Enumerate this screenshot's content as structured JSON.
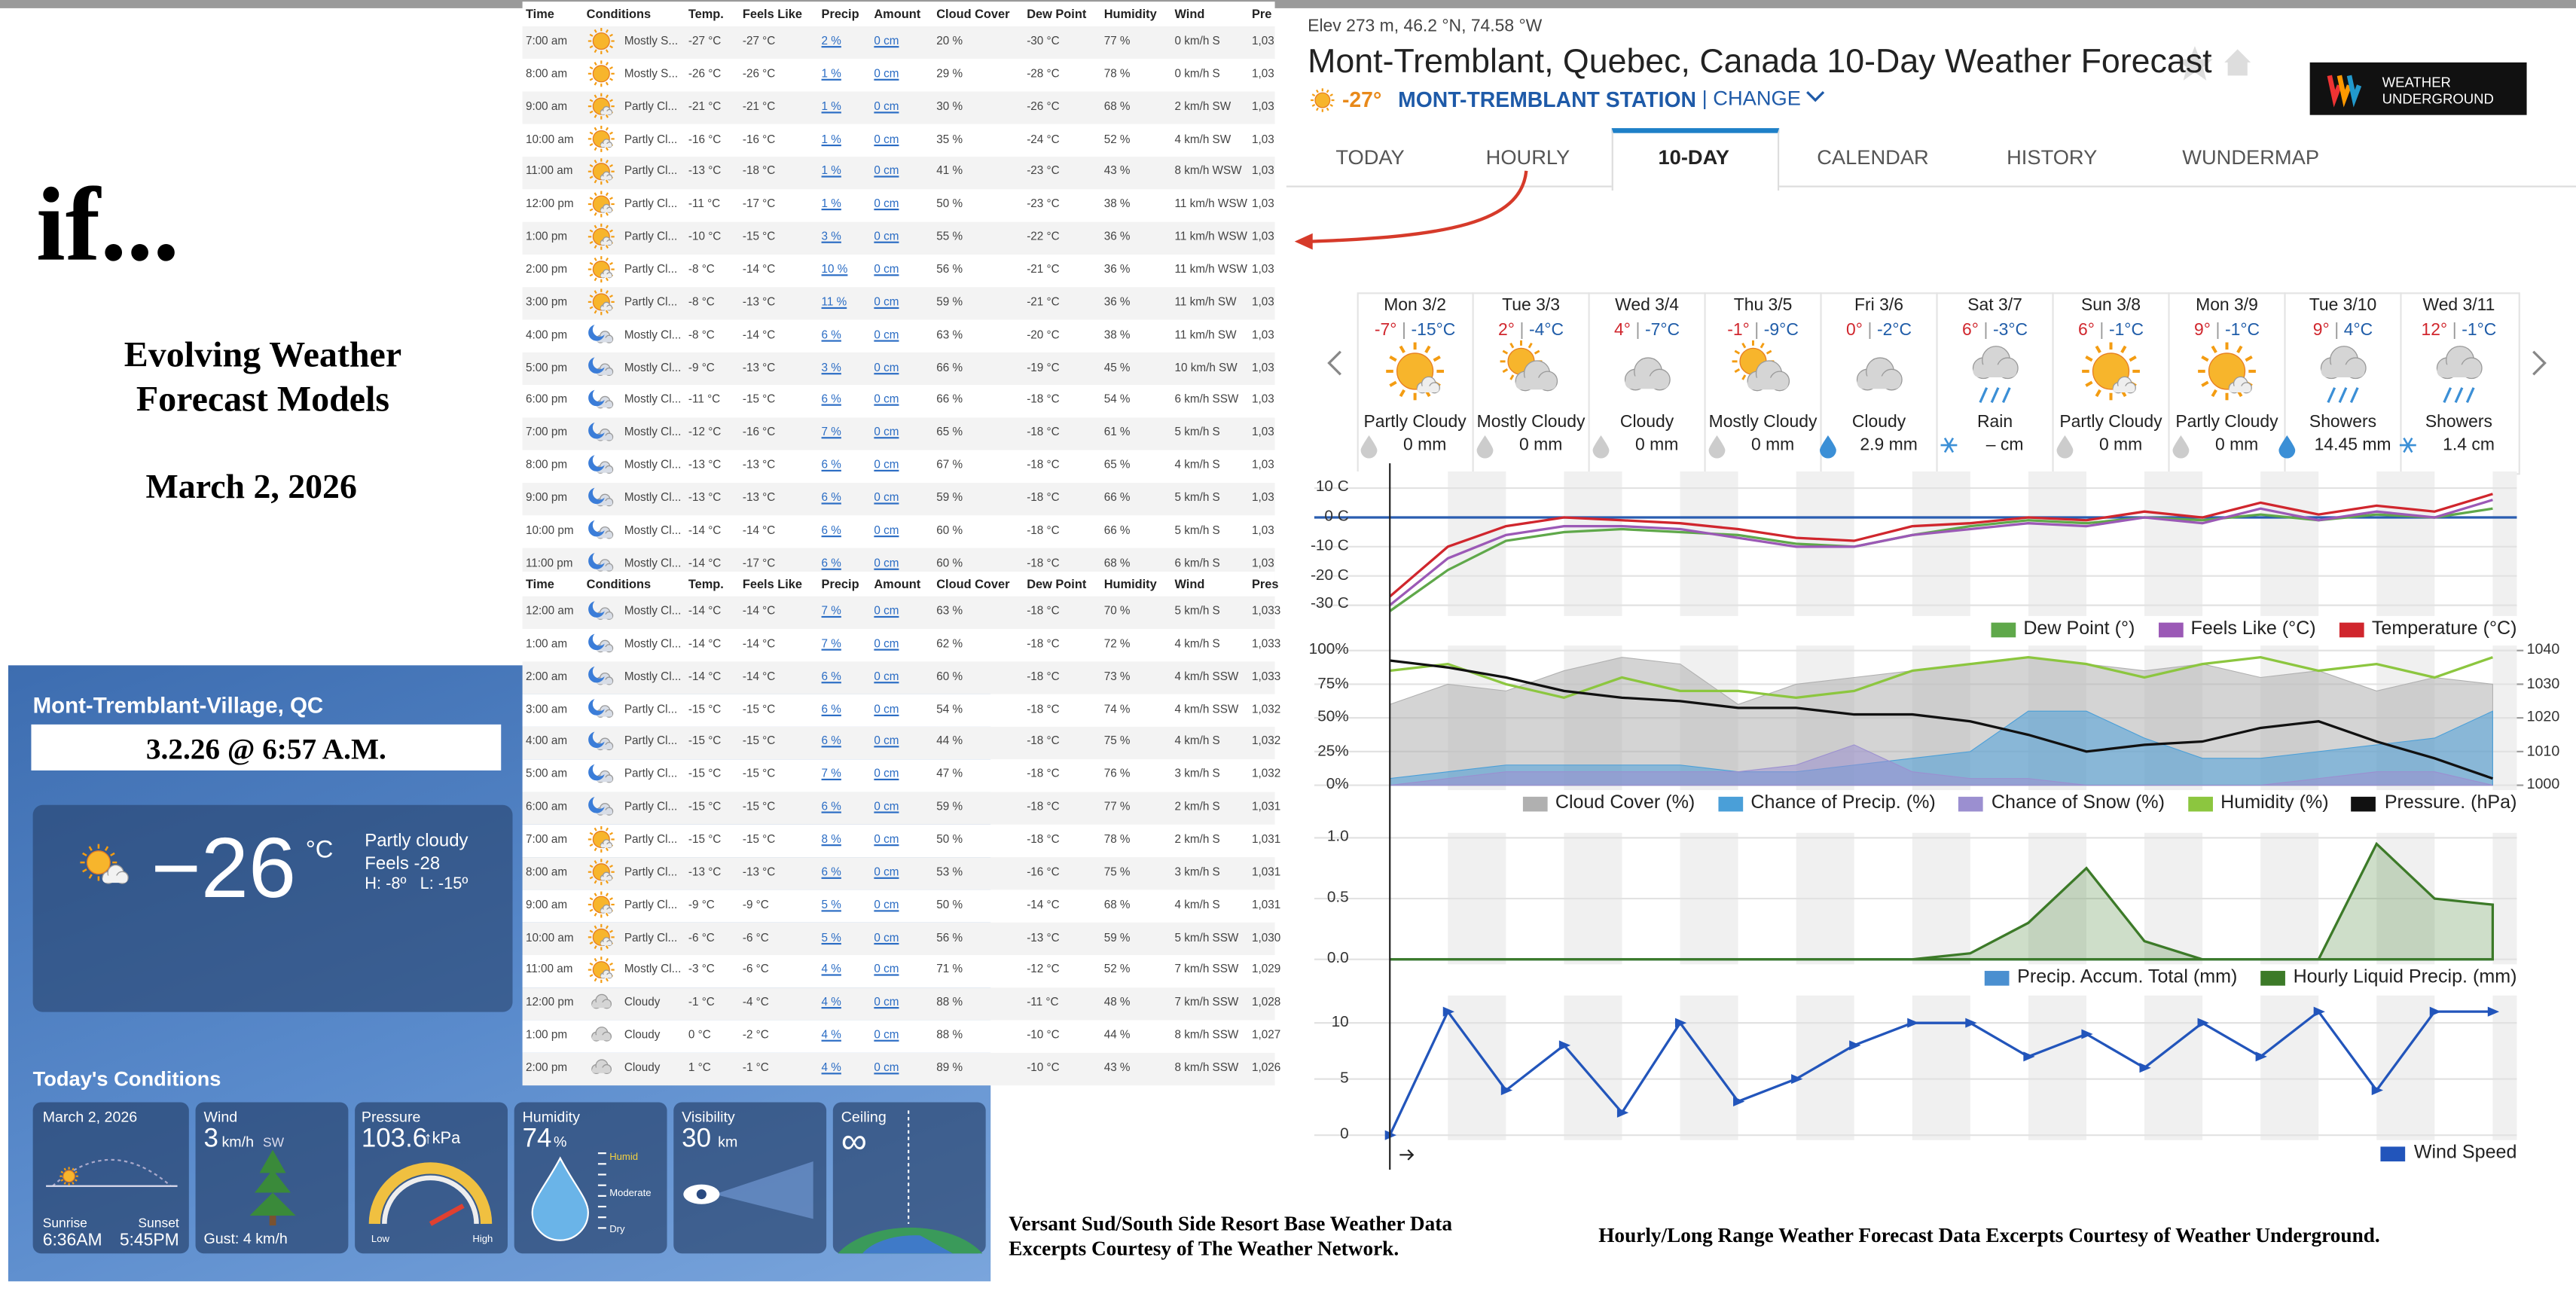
{
  "intro": {
    "title": "if...",
    "subtitle_lines": [
      "Evolving Weather",
      "Forecast Models"
    ],
    "date": "March 2, 2026"
  },
  "hourly_table": {
    "headers": [
      "Time",
      "Conditions",
      "Temp.",
      "Feels Like",
      "Precip",
      "Amount",
      "Cloud Cover",
      "Dew Point",
      "Humidity",
      "Wind",
      "Pre"
    ],
    "rows": [
      [
        "7:00 am",
        "Mostly S...",
        "-27 °C",
        "-27 °C",
        "2 %",
        "0 cm",
        "20 %",
        "-30 °C",
        "77 %",
        "0 km/h S",
        "1,03"
      ],
      [
        "8:00 am",
        "Mostly S...",
        "-26 °C",
        "-26 °C",
        "1 %",
        "0 cm",
        "29 %",
        "-28 °C",
        "78 %",
        "0 km/h S",
        "1,03"
      ],
      [
        "9:00 am",
        "Partly Cl...",
        "-21 °C",
        "-21 °C",
        "1 %",
        "0 cm",
        "30 %",
        "-26 °C",
        "68 %",
        "2 km/h SW",
        "1,03"
      ],
      [
        "10:00 am",
        "Partly Cl...",
        "-16 °C",
        "-16 °C",
        "1 %",
        "0 cm",
        "35 %",
        "-24 °C",
        "52 %",
        "4 km/h SW",
        "1,03"
      ],
      [
        "11:00 am",
        "Partly Cl...",
        "-13 °C",
        "-18 °C",
        "1 %",
        "0 cm",
        "41 %",
        "-23 °C",
        "43 %",
        "8 km/h WSW",
        "1,03"
      ],
      [
        "12:00 pm",
        "Partly Cl...",
        "-11 °C",
        "-17 °C",
        "1 %",
        "0 cm",
        "50 %",
        "-23 °C",
        "38 %",
        "11 km/h WSW",
        "1,03"
      ],
      [
        "1:00 pm",
        "Partly Cl...",
        "-10 °C",
        "-15 °C",
        "3 %",
        "0 cm",
        "55 %",
        "-22 °C",
        "36 %",
        "11 km/h WSW",
        "1,03"
      ],
      [
        "2:00 pm",
        "Partly Cl...",
        "-8 °C",
        "-14 °C",
        "10 %",
        "0 cm",
        "56 %",
        "-21 °C",
        "36 %",
        "11 km/h WSW",
        "1,03"
      ],
      [
        "3:00 pm",
        "Partly Cl...",
        "-8 °C",
        "-13 °C",
        "11 %",
        "0 cm",
        "59 %",
        "-21 °C",
        "36 %",
        "11 km/h SW",
        "1,03"
      ],
      [
        "4:00 pm",
        "Mostly Cl...",
        "-8 °C",
        "-14 °C",
        "6 %",
        "0 cm",
        "63 %",
        "-20 °C",
        "38 %",
        "11 km/h SW",
        "1,03"
      ],
      [
        "5:00 pm",
        "Mostly Cl...",
        "-9 °C",
        "-13 °C",
        "3 %",
        "0 cm",
        "66 %",
        "-19 °C",
        "45 %",
        "10 km/h SW",
        "1,03"
      ],
      [
        "6:00 pm",
        "Mostly Cl...",
        "-11 °C",
        "-15 °C",
        "6 %",
        "0 cm",
        "66 %",
        "-18 °C",
        "54 %",
        "6 km/h SSW",
        "1,03"
      ],
      [
        "7:00 pm",
        "Mostly Cl...",
        "-12 °C",
        "-16 °C",
        "7 %",
        "0 cm",
        "65 %",
        "-18 °C",
        "61 %",
        "5 km/h S",
        "1,03"
      ],
      [
        "8:00 pm",
        "Mostly Cl...",
        "-13 °C",
        "-13 °C",
        "6 %",
        "0 cm",
        "67 %",
        "-18 °C",
        "65 %",
        "4 km/h S",
        "1,03"
      ],
      [
        "9:00 pm",
        "Mostly Cl...",
        "-13 °C",
        "-13 °C",
        "6 %",
        "0 cm",
        "59 %",
        "-18 °C",
        "66 %",
        "5 km/h S",
        "1,03"
      ],
      [
        "10:00 pm",
        "Mostly Cl...",
        "-14 °C",
        "-14 °C",
        "6 %",
        "0 cm",
        "60 %",
        "-18 °C",
        "66 %",
        "5 km/h S",
        "1,03"
      ],
      [
        "11:00 pm",
        "Mostly Cl...",
        "-14 °C",
        "-17 °C",
        "6 %",
        "0 cm",
        "60 %",
        "-18 °C",
        "68 %",
        "6 km/h S",
        "1,03"
      ]
    ],
    "headers_2": [
      "Time",
      "Conditions",
      "Temp.",
      "Feels Like",
      "Precip",
      "Amount",
      "Cloud Cover",
      "Dew Point",
      "Humidity",
      "Wind",
      "Pres"
    ],
    "rows_2": [
      [
        "12:00 am",
        "Mostly Cl...",
        "-14 °C",
        "-14 °C",
        "7 %",
        "0 cm",
        "63 %",
        "-18 °C",
        "70 %",
        "5 km/h S",
        "1,033"
      ],
      [
        "1:00 am",
        "Mostly Cl...",
        "-14 °C",
        "-14 °C",
        "7 %",
        "0 cm",
        "62 %",
        "-18 °C",
        "72 %",
        "4 km/h S",
        "1,033"
      ],
      [
        "2:00 am",
        "Mostly Cl...",
        "-14 °C",
        "-14 °C",
        "6 %",
        "0 cm",
        "60 %",
        "-18 °C",
        "73 %",
        "4 km/h SSW",
        "1,033"
      ],
      [
        "3:00 am",
        "Partly Cl...",
        "-15 °C",
        "-15 °C",
        "6 %",
        "0 cm",
        "54 %",
        "-18 °C",
        "74 %",
        "4 km/h SSW",
        "1,032"
      ],
      [
        "4:00 am",
        "Partly Cl...",
        "-15 °C",
        "-15 °C",
        "6 %",
        "0 cm",
        "44 %",
        "-18 °C",
        "75 %",
        "4 km/h S",
        "1,032"
      ],
      [
        "5:00 am",
        "Partly Cl...",
        "-15 °C",
        "-15 °C",
        "7 %",
        "0 cm",
        "47 %",
        "-18 °C",
        "76 %",
        "3 km/h S",
        "1,032"
      ],
      [
        "6:00 am",
        "Partly Cl...",
        "-15 °C",
        "-15 °C",
        "6 %",
        "0 cm",
        "59 %",
        "-18 °C",
        "77 %",
        "2 km/h S",
        "1,031"
      ],
      [
        "7:00 am",
        "Partly Cl...",
        "-15 °C",
        "-15 °C",
        "8 %",
        "0 cm",
        "50 %",
        "-18 °C",
        "78 %",
        "2 km/h S",
        "1,031"
      ],
      [
        "8:00 am",
        "Partly Cl...",
        "-13 °C",
        "-13 °C",
        "6 %",
        "0 cm",
        "53 %",
        "-16 °C",
        "75 %",
        "3 km/h S",
        "1,031"
      ],
      [
        "9:00 am",
        "Partly Cl...",
        "-9 °C",
        "-9 °C",
        "5 %",
        "0 cm",
        "50 %",
        "-14 °C",
        "68 %",
        "4 km/h S",
        "1,031"
      ],
      [
        "10:00 am",
        "Partly Cl...",
        "-6 °C",
        "-6 °C",
        "5 %",
        "0 cm",
        "56 %",
        "-13 °C",
        "59 %",
        "5 km/h SSW",
        "1,030"
      ],
      [
        "11:00 am",
        "Mostly Cl...",
        "-3 °C",
        "-6 °C",
        "4 %",
        "0 cm",
        "71 %",
        "-12 °C",
        "52 %",
        "7 km/h SSW",
        "1,029"
      ],
      [
        "12:00 pm",
        "Cloudy",
        "-1 °C",
        "-4 °C",
        "4 %",
        "0 cm",
        "88 %",
        "-11 °C",
        "48 %",
        "7 km/h SSW",
        "1,028"
      ],
      [
        "1:00 pm",
        "Cloudy",
        "0 °C",
        "-2 °C",
        "4 %",
        "0 cm",
        "88 %",
        "-10 °C",
        "44 %",
        "8 km/h SSW",
        "1,027"
      ],
      [
        "2:00 pm",
        "Cloudy",
        "1 °C",
        "-1 °C",
        "4 %",
        "0 cm",
        "89 %",
        "-10 °C",
        "43 %",
        "8 km/h SSW",
        "1,026"
      ]
    ]
  },
  "weather_network": {
    "location": "Mont-Tremblant-Village, QC",
    "timestamp": "3.2.26 @ 6:57 A.M.",
    "current": {
      "temp": "−26",
      "unit": "°C",
      "condition": "Partly cloudy",
      "feels": "Feels -28",
      "high_low": "H: -8º   L: -15º"
    },
    "conditions_title": "Today's Conditions",
    "sun": {
      "date": "March 2, 2026",
      "sunrise_label": "Sunrise",
      "sunrise": "6:36AM",
      "sunset_label": "Sunset",
      "sunset": "5:45PM"
    },
    "wind": {
      "label": "Wind",
      "value": "3",
      "unit": "km/h",
      "direction": "SW",
      "gust": "Gust: 4 km/h"
    },
    "pressure": {
      "label": "Pressure",
      "value": "103.6",
      "unit": "↑kPa",
      "low": "Low",
      "high": "High"
    },
    "humidity": {
      "label": "Humidity",
      "value": "74",
      "unit": "%",
      "scale": [
        "Humid",
        "Moderate",
        "Dry"
      ]
    },
    "visibility": {
      "label": "Visibility",
      "value": "30",
      "unit": "km"
    },
    "ceiling": {
      "label": "Ceiling",
      "value": "∞"
    }
  },
  "weather_underground": {
    "elevation": "Elev 273 m, 46.2 °N, 74.58 °W",
    "title": "Mont-Tremblant, Quebec, Canada 10-Day Weather Forecast",
    "current_temp": "-27°",
    "station": "MONT-TREMBLANT STATION",
    "change": "| CHANGE",
    "logo": [
      "WEATHER",
      "UNDERGROUND"
    ],
    "tabs": [
      "TODAY",
      "HOURLY",
      "10-DAY",
      "CALENDAR",
      "HISTORY",
      "WUNDERMAP"
    ],
    "separator": "|",
    "days": [
      {
        "day": "Mon 3/2",
        "high": "-7°",
        "low": "-15°C",
        "condition": "Partly Cloudy",
        "precip": "0 mm"
      },
      {
        "day": "Tue 3/3",
        "high": "2°",
        "low": "-4°C",
        "condition": "Mostly Cloudy",
        "precip": "0 mm"
      },
      {
        "day": "Wed 3/4",
        "high": "4°",
        "low": "-7°C",
        "condition": "Cloudy",
        "precip": "0 mm"
      },
      {
        "day": "Thu 3/5",
        "high": "-1°",
        "low": "-9°C",
        "condition": "Mostly Cloudy",
        "precip": "0 mm"
      },
      {
        "day": "Fri 3/6",
        "high": "0°",
        "low": "-2°C",
        "condition": "Cloudy",
        "precip": "2.9 mm"
      },
      {
        "day": "Sat 3/7",
        "high": "6°",
        "low": "-3°C",
        "condition": "Rain",
        "precip": "– cm"
      },
      {
        "day": "Sun 3/8",
        "high": "6°",
        "low": "-1°C",
        "condition": "Partly Cloudy",
        "precip": "0 mm"
      },
      {
        "day": "Mon 3/9",
        "high": "9°",
        "low": "-1°C",
        "condition": "Partly Cloudy",
        "precip": "0 mm"
      },
      {
        "day": "Tue 3/10",
        "high": "9°",
        "low": "4°C",
        "condition": "Showers",
        "precip": "14.45 mm"
      },
      {
        "day": "Wed 3/11",
        "high": "12°",
        "low": "-1°C",
        "condition": "Showers",
        "precip": "1.4 cm"
      }
    ]
  },
  "chart_data": [
    {
      "type": "line",
      "x": [
        0,
        12,
        24,
        36,
        48,
        60,
        72,
        84,
        96,
        108,
        120,
        132,
        144,
        156,
        168,
        180,
        192,
        204,
        216,
        228
      ],
      "xlim": [
        0,
        233
      ],
      "ylim": [
        -32,
        14
      ],
      "yticks": [
        {
          "value": 10,
          "label": "10 C"
        },
        {
          "value": 0,
          "label": "0 C"
        },
        {
          "value": -10,
          "label": "-10 C"
        },
        {
          "value": -20,
          "label": "-20 C"
        },
        {
          "value": -30,
          "label": "-30 C"
        }
      ],
      "zero_line": true,
      "series": [
        {
          "name": "Dew Point (°)",
          "color": "#5fa84a",
          "values": [
            -32,
            -18,
            -8,
            -5,
            -4,
            -5,
            -6,
            -9,
            -10,
            -6,
            -3,
            -1,
            -2,
            0,
            -1,
            1,
            -1,
            1,
            0,
            3
          ]
        },
        {
          "name": "Feels Like (°C)",
          "color": "#9b59b6",
          "values": [
            -30,
            -14,
            -6,
            -3,
            -3,
            -4,
            -7,
            -10,
            -10,
            -6,
            -4,
            -2,
            -3,
            0,
            -2,
            3,
            -1,
            2,
            0,
            6
          ]
        },
        {
          "name": "Temperature (°C)",
          "color": "#d0262d",
          "values": [
            -27,
            -10,
            -3,
            0,
            -1,
            -2,
            -4,
            -7,
            -8,
            -3,
            -2,
            0,
            -1,
            2,
            0,
            5,
            1,
            4,
            2,
            8
          ]
        }
      ]
    },
    {
      "type": "area",
      "x": [
        0,
        12,
        24,
        36,
        48,
        60,
        72,
        84,
        96,
        108,
        120,
        132,
        144,
        156,
        168,
        180,
        192,
        204,
        216,
        228
      ],
      "xlim": [
        0,
        233
      ],
      "ylim": [
        0,
        100
      ],
      "yticks": [
        {
          "value": 100,
          "label": "100%"
        },
        {
          "value": 75,
          "label": "75%"
        },
        {
          "value": 50,
          "label": "50%"
        },
        {
          "value": 25,
          "label": "25%"
        },
        {
          "value": 0,
          "label": "0%"
        }
      ],
      "y2lim": [
        1000,
        1040
      ],
      "y2ticks": [
        1040,
        1030,
        1020,
        1010,
        1000
      ],
      "series": [
        {
          "name": "Cloud Cover (%)",
          "color": "#b0b0b0",
          "values": [
            60,
            75,
            70,
            85,
            95,
            90,
            60,
            75,
            80,
            85,
            90,
            95,
            90,
            85,
            90,
            80,
            85,
            70,
            80,
            75
          ]
        },
        {
          "name": "Chance of Precip. (%)",
          "color": "#4a9fd8",
          "values": [
            5,
            10,
            15,
            15,
            15,
            15,
            10,
            10,
            15,
            20,
            25,
            55,
            55,
            35,
            20,
            20,
            25,
            30,
            35,
            55
          ]
        },
        {
          "name": "Chance of Snow (%)",
          "color": "#9b8fd0",
          "values": [
            0,
            5,
            10,
            10,
            10,
            10,
            10,
            15,
            30,
            10,
            5,
            5,
            0,
            0,
            0,
            0,
            5,
            10,
            10,
            0
          ]
        },
        {
          "name": "Humidity (%)",
          "color": "#8cc63f",
          "mark": "line",
          "values": [
            85,
            90,
            75,
            65,
            80,
            70,
            70,
            65,
            70,
            85,
            90,
            95,
            90,
            80,
            90,
            95,
            85,
            90,
            80,
            95
          ]
        },
        {
          "name": "Pressure. (hPa)",
          "color": "#111111",
          "mark": "line",
          "axis": "y2",
          "values": [
            1037,
            1035,
            1032,
            1028,
            1026,
            1025,
            1023,
            1023,
            1021,
            1021,
            1019,
            1015,
            1010,
            1012,
            1013,
            1017,
            1019,
            1013,
            1008,
            1002
          ]
        }
      ]
    },
    {
      "type": "area",
      "x": [
        0,
        12,
        24,
        36,
        48,
        60,
        72,
        84,
        96,
        108,
        120,
        132,
        144,
        156,
        168,
        180,
        192,
        204,
        216,
        228
      ],
      "xlim": [
        0,
        233
      ],
      "ylim": [
        0,
        1
      ],
      "yticks": [
        {
          "value": 1,
          "label": "1.0"
        },
        {
          "value": 0.5,
          "label": "0.5"
        },
        {
          "value": 0,
          "label": "0.0"
        }
      ],
      "series": [
        {
          "name": "Precip. Accum. Total (mm)",
          "color": "#4a8fd0",
          "values": [
            0,
            0,
            0,
            0,
            0,
            0,
            0,
            0,
            0,
            0,
            0,
            0,
            0,
            0,
            0,
            0,
            0,
            0,
            0,
            0
          ]
        },
        {
          "name": "Hourly Liquid Precip. (mm)",
          "color": "#3c7a28",
          "values": [
            0,
            0,
            0,
            0,
            0,
            0,
            0,
            0,
            0,
            0,
            0.05,
            0.3,
            0.75,
            0.15,
            0,
            0,
            0,
            0.95,
            0.5,
            0.45
          ]
        }
      ]
    },
    {
      "type": "line",
      "x": [
        0,
        12,
        24,
        36,
        48,
        60,
        72,
        84,
        96,
        108,
        120,
        132,
        144,
        156,
        168,
        180,
        192,
        204,
        216,
        228
      ],
      "xlim": [
        0,
        233
      ],
      "ylim": [
        0,
        12
      ],
      "yticks": [
        10,
        5,
        0
      ],
      "markers": true,
      "series": [
        {
          "name": "Wind Speed",
          "color": "#2255bb",
          "values": [
            0,
            11,
            4,
            8,
            2,
            10,
            3,
            5,
            8,
            10,
            10,
            7,
            9,
            6,
            10,
            7,
            11,
            4,
            11,
            11
          ]
        }
      ]
    }
  ],
  "credits": {
    "left": [
      "Versant Sud/South Side Resort Base Weather Data",
      "Excerpts Courtesy of The Weather Network."
    ],
    "right": "Hourly/Long Range Weather Forecast Data Excerpts Courtesy of Weather Underground."
  }
}
